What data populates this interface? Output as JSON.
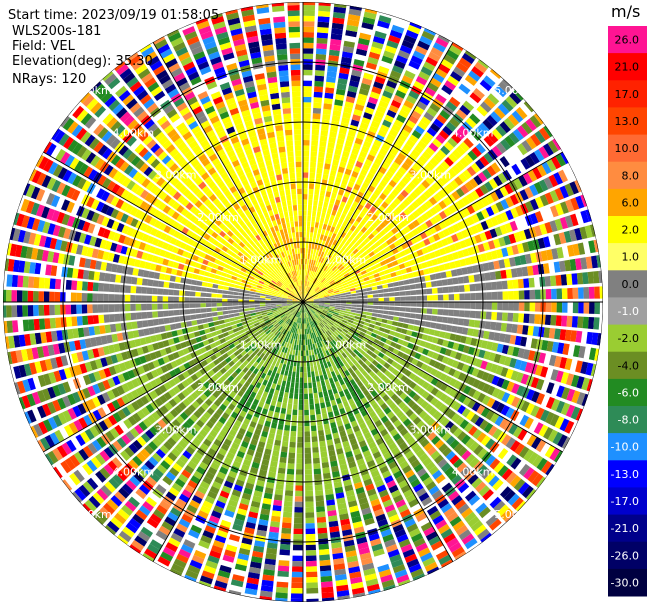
{
  "header": {
    "start_time": "Start time: 2023/09/19 01:58:05",
    "station": "WLS200s-181",
    "field": "Field: VEL",
    "elevation": "Elevation(deg): 35.30",
    "nrays": "NRays: 120"
  },
  "colorbar": {
    "unit": "m/s",
    "labels": [
      "26.0",
      "21.0",
      "17.0",
      "13.0",
      "10.0",
      "8.0",
      "6.0",
      "2.0",
      "1.0",
      "0.0",
      "-1.0",
      "-2.0",
      "-4.0",
      "-6.0",
      "-8.0",
      "-10.0",
      "-13.0",
      "-17.0",
      "-21.0",
      "-26.0",
      "-30.0"
    ],
    "colors": [
      "#ff1493",
      "#ff0000",
      "#ff2200",
      "#ff4500",
      "#ff6a33",
      "#ff8c40",
      "#ffa500",
      "#ffff00",
      "#ffff66",
      "#808080",
      "#a0a0a0",
      "#9acd32",
      "#6b8e23",
      "#228b22",
      "#2e8b57",
      "#1e90ff",
      "#0000ff",
      "#0000cd",
      "#00008b",
      "#000066",
      "#000040"
    ],
    "label_colors": [
      "#000",
      "#000",
      "#000",
      "#000",
      "#000",
      "#000",
      "#000",
      "#000",
      "#000",
      "#000",
      "#fff",
      "#000",
      "#000",
      "#fff",
      "#fff",
      "#fff",
      "#fff",
      "#fff",
      "#fff",
      "#fff",
      "#fff"
    ]
  },
  "chart_data": {
    "type": "heatmap",
    "projection": "polar-ppi",
    "field": "VEL",
    "units": "m/s",
    "nrays": 120,
    "range_rings_km": [
      1.0,
      2.0,
      3.0,
      4.0,
      5.0
    ],
    "range_labels": [
      "1.00km",
      "2.00km",
      "3.00km",
      "4.00km",
      "5.00km"
    ],
    "vmin": -30.0,
    "vmax": 30.0,
    "pattern_summary": {
      "north_inner": "yellow (about 1 to 6 m/s, receding)",
      "south_inner": "green (about -2 to -8 m/s, approaching)",
      "east_west_near_zero": "gray (about 0 m/s)",
      "outer": "noise, mixed colors"
    }
  }
}
